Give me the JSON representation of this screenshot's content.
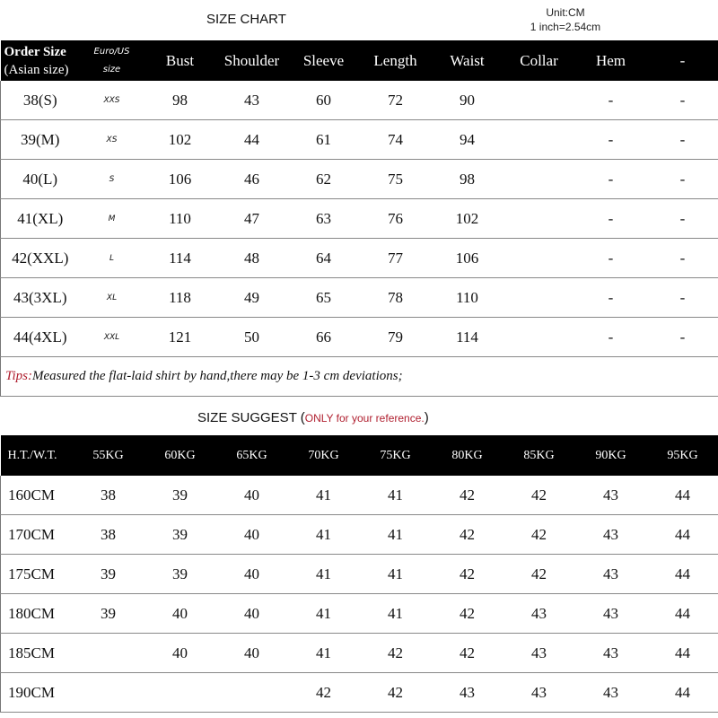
{
  "size_chart": {
    "title": "SIZE CHART",
    "unit_line1": "Unit:CM",
    "unit_line2": "1 inch=2.54cm",
    "headers": [
      "Order Size",
      "(Asian size)",
      "Euro/US",
      "size",
      "Bust",
      "Shoulder",
      "Sleeve",
      "Length",
      "Waist",
      "Collar",
      "Hem",
      "-"
    ],
    "rows": [
      [
        "38(S)",
        "XXS",
        "98",
        "43",
        "60",
        "72",
        "90",
        "",
        "-",
        "-"
      ],
      [
        "39(M)",
        "XS",
        "102",
        "44",
        "61",
        "74",
        "94",
        "",
        "-",
        "-"
      ],
      [
        "40(L)",
        "S",
        "106",
        "46",
        "62",
        "75",
        "98",
        "",
        "-",
        "-"
      ],
      [
        "41(XL)",
        "M",
        "110",
        "47",
        "63",
        "76",
        "102",
        "",
        "-",
        "-"
      ],
      [
        "42(XXL)",
        "L",
        "114",
        "48",
        "64",
        "77",
        "106",
        "",
        "-",
        "-"
      ],
      [
        "43(3XL)",
        "XL",
        "118",
        "49",
        "65",
        "78",
        "110",
        "",
        "-",
        "-"
      ],
      [
        "44(4XL)",
        "XXL",
        "121",
        "50",
        "66",
        "79",
        "114",
        "",
        "-",
        "-"
      ]
    ],
    "tips_label": "Tips:",
    "tips_text": "Measured the flat-laid shirt by hand,there may be 1-3 cm deviations;",
    "tips_color": "#b02030"
  },
  "size_suggest": {
    "title": "SIZE SUGGEST",
    "note_open": " (",
    "note": "ONLY for your reference.",
    "note_close": ")",
    "headers": [
      "H.T./W.T.",
      "55KG",
      "60KG",
      "65KG",
      "70KG",
      "75KG",
      "80KG",
      "85KG",
      "90KG",
      "95KG"
    ],
    "rows": [
      [
        "160CM",
        "38",
        "39",
        "40",
        "41",
        "41",
        "42",
        "42",
        "43",
        "44"
      ],
      [
        "170CM",
        "38",
        "39",
        "40",
        "41",
        "41",
        "42",
        "42",
        "43",
        "44"
      ],
      [
        "175CM",
        "39",
        "39",
        "40",
        "41",
        "41",
        "42",
        "42",
        "43",
        "44"
      ],
      [
        "180CM",
        "39",
        "40",
        "40",
        "41",
        "41",
        "42",
        "43",
        "43",
        "44"
      ],
      [
        "185CM",
        "",
        "40",
        "40",
        "41",
        "42",
        "42",
        "43",
        "43",
        "44"
      ],
      [
        "190CM",
        "",
        "",
        "",
        "42",
        "42",
        "43",
        "43",
        "43",
        "44"
      ]
    ]
  }
}
